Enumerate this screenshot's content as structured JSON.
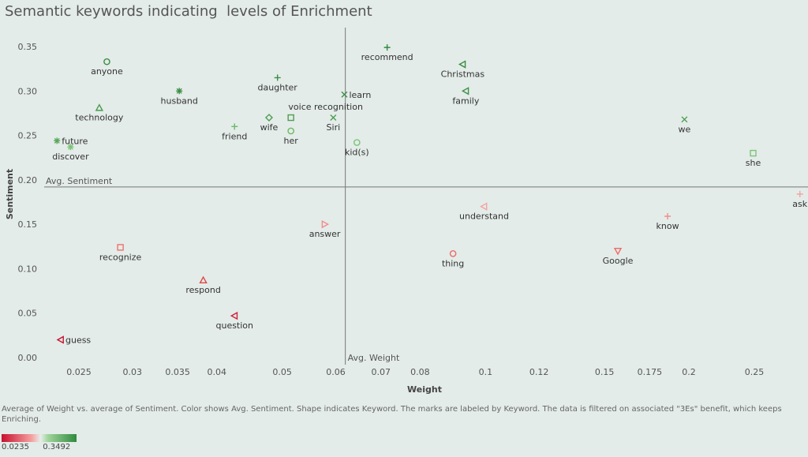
{
  "title": "Semantic keywords indicating  levels of Enrichment",
  "caption": "Average of Weight vs. average of Sentiment.  Color shows Avg. Sentiment.  Shape indicates Keyword.  The marks are labeled by Keyword. The data is filtered on associated \"3Es\" benefit, which keeps Enriching.",
  "legend": {
    "min": "0.0235",
    "max": "0.3492"
  },
  "colors": {
    "low": "#c8102e",
    "mid": "#f5a3a3",
    "high_light": "#8dd08a",
    "high": "#2f8a3e",
    "ref_line": "#777777"
  },
  "chart_data": {
    "type": "scatter",
    "title": "Semantic keywords indicating  levels of Enrichment",
    "xlabel": "Weight",
    "ylabel": "Sentiment",
    "x_scale": "log",
    "x_ticks": [
      "0.025",
      "0.03",
      "0.035",
      "0.04",
      "0.05",
      "0.06",
      "0.07",
      "0.08",
      "0.1",
      "0.12",
      "0.15",
      "0.175",
      "0.2",
      "0.25"
    ],
    "y_ticks": [
      "0.00",
      "0.05",
      "0.10",
      "0.15",
      "0.20",
      "0.25",
      "0.30",
      "0.35"
    ],
    "ylim": [
      0,
      0.36
    ],
    "reference_lines": [
      {
        "label": "Avg. Sentiment",
        "axis": "y",
        "value": 0.192
      },
      {
        "label": "Avg. Weight",
        "axis": "x",
        "value": 0.062
      }
    ],
    "points": [
      {
        "keyword": "anyone",
        "x": 0.0275,
        "y": 0.333,
        "marker": "circle",
        "color": "#3a8c44"
      },
      {
        "keyword": "husband",
        "x": 0.0352,
        "y": 0.3,
        "marker": "asterisk",
        "color": "#3f9049"
      },
      {
        "keyword": "technology",
        "x": 0.0268,
        "y": 0.281,
        "marker": "triangle-up",
        "color": "#4a9a50"
      },
      {
        "keyword": "future",
        "x": 0.0232,
        "y": 0.244,
        "marker": "asterisk",
        "color": "#5aa85a"
      },
      {
        "keyword": "discover",
        "x": 0.0243,
        "y": 0.237,
        "marker": "asterisk",
        "color": "#7cc477"
      },
      {
        "keyword": "friend",
        "x": 0.0425,
        "y": 0.26,
        "marker": "plus",
        "color": "#6cb867"
      },
      {
        "keyword": "daughter",
        "x": 0.0492,
        "y": 0.315,
        "marker": "plus",
        "color": "#3b8d45"
      },
      {
        "keyword": "wife",
        "x": 0.0478,
        "y": 0.27,
        "marker": "diamond",
        "color": "#4f9c52"
      },
      {
        "keyword": "voice recognition",
        "x": 0.0515,
        "y": 0.27,
        "marker": "square",
        "color": "#4f9c52"
      },
      {
        "keyword": "her",
        "x": 0.0515,
        "y": 0.255,
        "marker": "circle",
        "color": "#6cb867"
      },
      {
        "keyword": "Siri",
        "x": 0.0595,
        "y": 0.27,
        "marker": "cross",
        "color": "#4f9c52"
      },
      {
        "keyword": "learn",
        "x": 0.0618,
        "y": 0.296,
        "marker": "cross",
        "color": "#3f9049"
      },
      {
        "keyword": "kid(s)",
        "x": 0.0645,
        "y": 0.242,
        "marker": "circle",
        "color": "#7cc477"
      },
      {
        "keyword": "recommend",
        "x": 0.0715,
        "y": 0.349,
        "marker": "plus",
        "color": "#2f8a3e"
      },
      {
        "keyword": "Christmas",
        "x": 0.0925,
        "y": 0.33,
        "marker": "triangle-left",
        "color": "#3a8c44"
      },
      {
        "keyword": "family",
        "x": 0.0935,
        "y": 0.3,
        "marker": "triangle-left",
        "color": "#3f9049"
      },
      {
        "keyword": "we",
        "x": 0.197,
        "y": 0.268,
        "marker": "cross",
        "color": "#4f9c52"
      },
      {
        "keyword": "she",
        "x": 0.249,
        "y": 0.23,
        "marker": "square",
        "color": "#7cc477"
      },
      {
        "keyword": "ask",
        "x": 0.292,
        "y": 0.184,
        "marker": "plus",
        "color": "#f5a3a3"
      },
      {
        "keyword": "understand",
        "x": 0.0995,
        "y": 0.17,
        "marker": "triangle-left",
        "color": "#f5a3a3"
      },
      {
        "keyword": "know",
        "x": 0.186,
        "y": 0.159,
        "marker": "plus",
        "color": "#f28c8c"
      },
      {
        "keyword": "answer",
        "x": 0.0578,
        "y": 0.15,
        "marker": "triangle-right",
        "color": "#f28c8c"
      },
      {
        "keyword": "recognize",
        "x": 0.0288,
        "y": 0.124,
        "marker": "square",
        "color": "#ee7070"
      },
      {
        "keyword": "Google",
        "x": 0.157,
        "y": 0.12,
        "marker": "triangle-down",
        "color": "#ee6a6a"
      },
      {
        "keyword": "thing",
        "x": 0.0895,
        "y": 0.117,
        "marker": "circle",
        "color": "#ee6a6a"
      },
      {
        "keyword": "respond",
        "x": 0.0382,
        "y": 0.087,
        "marker": "triangle-up",
        "color": "#e04646"
      },
      {
        "keyword": "question",
        "x": 0.0425,
        "y": 0.047,
        "marker": "triangle-left",
        "color": "#cf2339"
      },
      {
        "keyword": "guess",
        "x": 0.0235,
        "y": 0.02,
        "marker": "triangle-left",
        "color": "#c8102e"
      }
    ]
  }
}
